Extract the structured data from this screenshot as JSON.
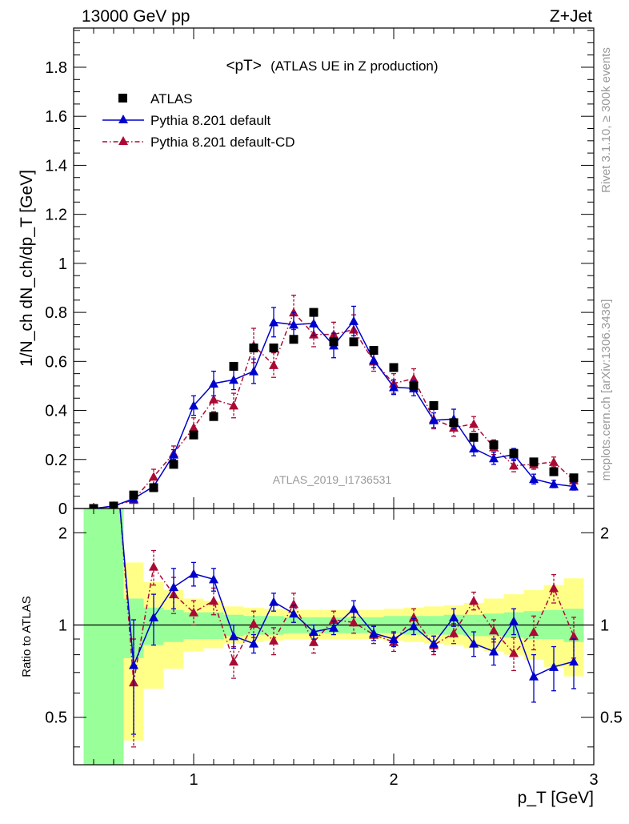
{
  "header": {
    "left": "13000 GeV pp",
    "right": "Z+Jet"
  },
  "side_labels": {
    "rivet": "Rivet 3.1.10, ≥ 300k events",
    "mcplots": "mcplots.cern.ch [arXiv:1306.3436]"
  },
  "plot_title": {
    "main": "<pT>",
    "sub": "(ATLAS UE in Z production)"
  },
  "analysis_id": "ATLAS_2019_I1736531",
  "axes": {
    "ylabel_top": "1/N_ch dN_ch/dp_T [GeV]",
    "ylabel_bottom": "Ratio to ATLAS",
    "xlabel": "p_T [GeV]"
  },
  "legend": {
    "items": [
      "ATLAS",
      "Pythia 8.201 default",
      "Pythia 8.201 default-CD"
    ]
  },
  "colors": {
    "data": "#000000",
    "pythia_default": "#0000cc",
    "pythia_cd": "#aa0a33",
    "band_inner": "#99ff99",
    "band_outer": "#ffff88"
  },
  "chart_data": [
    {
      "type": "scatter",
      "panel": "main",
      "xlim": [
        0.4,
        3.0
      ],
      "ylim": [
        0,
        1.96
      ],
      "x_ticks": [
        "1",
        "2",
        "3"
      ],
      "y_ticks": [
        "0",
        "0.2",
        "0.4",
        "0.6",
        "0.8",
        "1",
        "1.2",
        "1.4",
        "1.6",
        "1.8"
      ],
      "x": [
        0.5,
        0.6,
        0.7,
        0.8,
        0.9,
        1.0,
        1.1,
        1.2,
        1.3,
        1.4,
        1.5,
        1.6,
        1.7,
        1.8,
        1.9,
        2.0,
        2.1,
        2.2,
        2.3,
        2.4,
        2.5,
        2.6,
        2.7,
        2.8,
        2.9
      ],
      "series": [
        {
          "name": "ATLAS",
          "values": [
            0.0,
            0.01,
            0.055,
            0.085,
            0.18,
            0.3,
            0.375,
            0.58,
            0.655,
            0.655,
            0.69,
            0.8,
            0.68,
            0.68,
            0.645,
            0.575,
            0.5,
            0.42,
            0.35,
            0.29,
            0.26,
            0.225,
            0.19,
            0.15,
            0.125
          ]
        },
        {
          "name": "Pythia 8.201 default",
          "values": [
            0.0,
            0.01,
            0.04,
            0.09,
            0.22,
            0.42,
            0.51,
            0.525,
            0.56,
            0.76,
            0.75,
            0.755,
            0.665,
            0.765,
            0.605,
            0.495,
            0.49,
            0.36,
            0.365,
            0.245,
            0.205,
            0.22,
            0.12,
            0.1,
            0.09
          ],
          "errors": [
            0.0,
            0.005,
            0.008,
            0.01,
            0.02,
            0.04,
            0.05,
            0.04,
            0.05,
            0.06,
            0.05,
            0.05,
            0.05,
            0.06,
            0.03,
            0.03,
            0.03,
            0.03,
            0.04,
            0.03,
            0.025,
            0.025,
            0.02,
            0.015,
            0.015
          ]
        },
        {
          "name": "Pythia 8.201 default-CD",
          "values": [
            0.0,
            0.01,
            0.035,
            0.13,
            0.225,
            0.33,
            0.445,
            0.42,
            0.665,
            0.585,
            0.8,
            0.71,
            0.71,
            0.73,
            0.6,
            0.51,
            0.53,
            0.365,
            0.33,
            0.345,
            0.25,
            0.175,
            0.18,
            0.19,
            0.115
          ],
          "errors": [
            0.0,
            0.005,
            0.008,
            0.03,
            0.03,
            0.04,
            0.05,
            0.05,
            0.07,
            0.05,
            0.07,
            0.05,
            0.05,
            0.06,
            0.04,
            0.04,
            0.04,
            0.04,
            0.035,
            0.03,
            0.03,
            0.025,
            0.02,
            0.02,
            0.02
          ]
        }
      ]
    },
    {
      "type": "line",
      "panel": "ratio",
      "xlim": [
        0.4,
        3.0
      ],
      "ylim": [
        0.35,
        2.4
      ],
      "x_ticks": [
        "1",
        "2",
        "3"
      ],
      "y_ticks": [
        "0.5",
        "1",
        "2"
      ],
      "reference_line": 1,
      "x": [
        0.7,
        0.8,
        0.9,
        1.0,
        1.1,
        1.2,
        1.3,
        1.4,
        1.5,
        1.6,
        1.7,
        1.8,
        1.9,
        2.0,
        2.1,
        2.2,
        2.3,
        2.4,
        2.5,
        2.6,
        2.7,
        2.8,
        2.9
      ],
      "uncertainty_bands": {
        "edges": [
          0.45,
          0.65,
          0.75,
          0.85,
          0.95,
          1.05,
          1.15,
          1.25,
          1.35,
          1.45,
          1.55,
          1.65,
          1.75,
          1.85,
          1.95,
          2.05,
          2.15,
          2.25,
          2.35,
          2.45,
          2.55,
          2.65,
          2.75,
          2.85,
          2.95
        ],
        "inner_lo": [
          0.3,
          0.78,
          0.86,
          0.88,
          0.9,
          0.9,
          0.92,
          0.93,
          0.93,
          0.94,
          0.94,
          0.94,
          0.94,
          0.94,
          0.94,
          0.93,
          0.93,
          0.93,
          0.92,
          0.92,
          0.91,
          0.9,
          0.9,
          0.88
        ],
        "inner_hi": [
          3.0,
          1.22,
          1.14,
          1.12,
          1.1,
          1.1,
          1.08,
          1.07,
          1.07,
          1.06,
          1.06,
          1.06,
          1.06,
          1.06,
          1.07,
          1.07,
          1.07,
          1.08,
          1.08,
          1.09,
          1.1,
          1.11,
          1.12,
          1.13
        ],
        "outer_lo": [
          0.3,
          0.42,
          0.62,
          0.72,
          0.82,
          0.84,
          0.87,
          0.88,
          0.89,
          0.9,
          0.9,
          0.9,
          0.9,
          0.9,
          0.89,
          0.88,
          0.87,
          0.86,
          0.84,
          0.82,
          0.8,
          0.77,
          0.73,
          0.68
        ],
        "outer_hi": [
          3.0,
          1.6,
          1.38,
          1.3,
          1.22,
          1.2,
          1.15,
          1.14,
          1.13,
          1.12,
          1.12,
          1.12,
          1.12,
          1.12,
          1.13,
          1.14,
          1.15,
          1.16,
          1.18,
          1.22,
          1.26,
          1.3,
          1.35,
          1.42
        ]
      },
      "series": [
        {
          "name": "Pythia 8.201 default",
          "values": [
            0.74,
            1.06,
            1.33,
            1.47,
            1.41,
            0.92,
            0.87,
            1.19,
            1.09,
            0.95,
            0.98,
            1.13,
            0.94,
            0.9,
            0.99,
            0.87,
            1.06,
            0.87,
            0.82,
            1.03,
            0.68,
            0.73,
            0.76
          ],
          "errors": [
            0.3,
            0.2,
            0.2,
            0.13,
            0.12,
            0.08,
            0.06,
            0.08,
            0.07,
            0.05,
            0.05,
            0.07,
            0.05,
            0.05,
            0.06,
            0.05,
            0.07,
            0.08,
            0.08,
            0.1,
            0.12,
            0.12,
            0.14
          ]
        },
        {
          "name": "Pythia 8.201 default-CD",
          "values": [
            0.65,
            1.55,
            1.26,
            1.1,
            1.2,
            0.76,
            1.01,
            0.89,
            1.17,
            0.88,
            1.04,
            1.02,
            0.93,
            0.88,
            1.06,
            0.86,
            0.94,
            1.2,
            0.96,
            0.81,
            0.95,
            1.32,
            0.92
          ],
          "errors": [
            0.25,
            0.2,
            0.17,
            0.1,
            0.12,
            0.09,
            0.1,
            0.09,
            0.1,
            0.07,
            0.07,
            0.08,
            0.06,
            0.06,
            0.07,
            0.06,
            0.07,
            0.08,
            0.08,
            0.1,
            0.12,
            0.14,
            0.14
          ]
        }
      ]
    }
  ]
}
